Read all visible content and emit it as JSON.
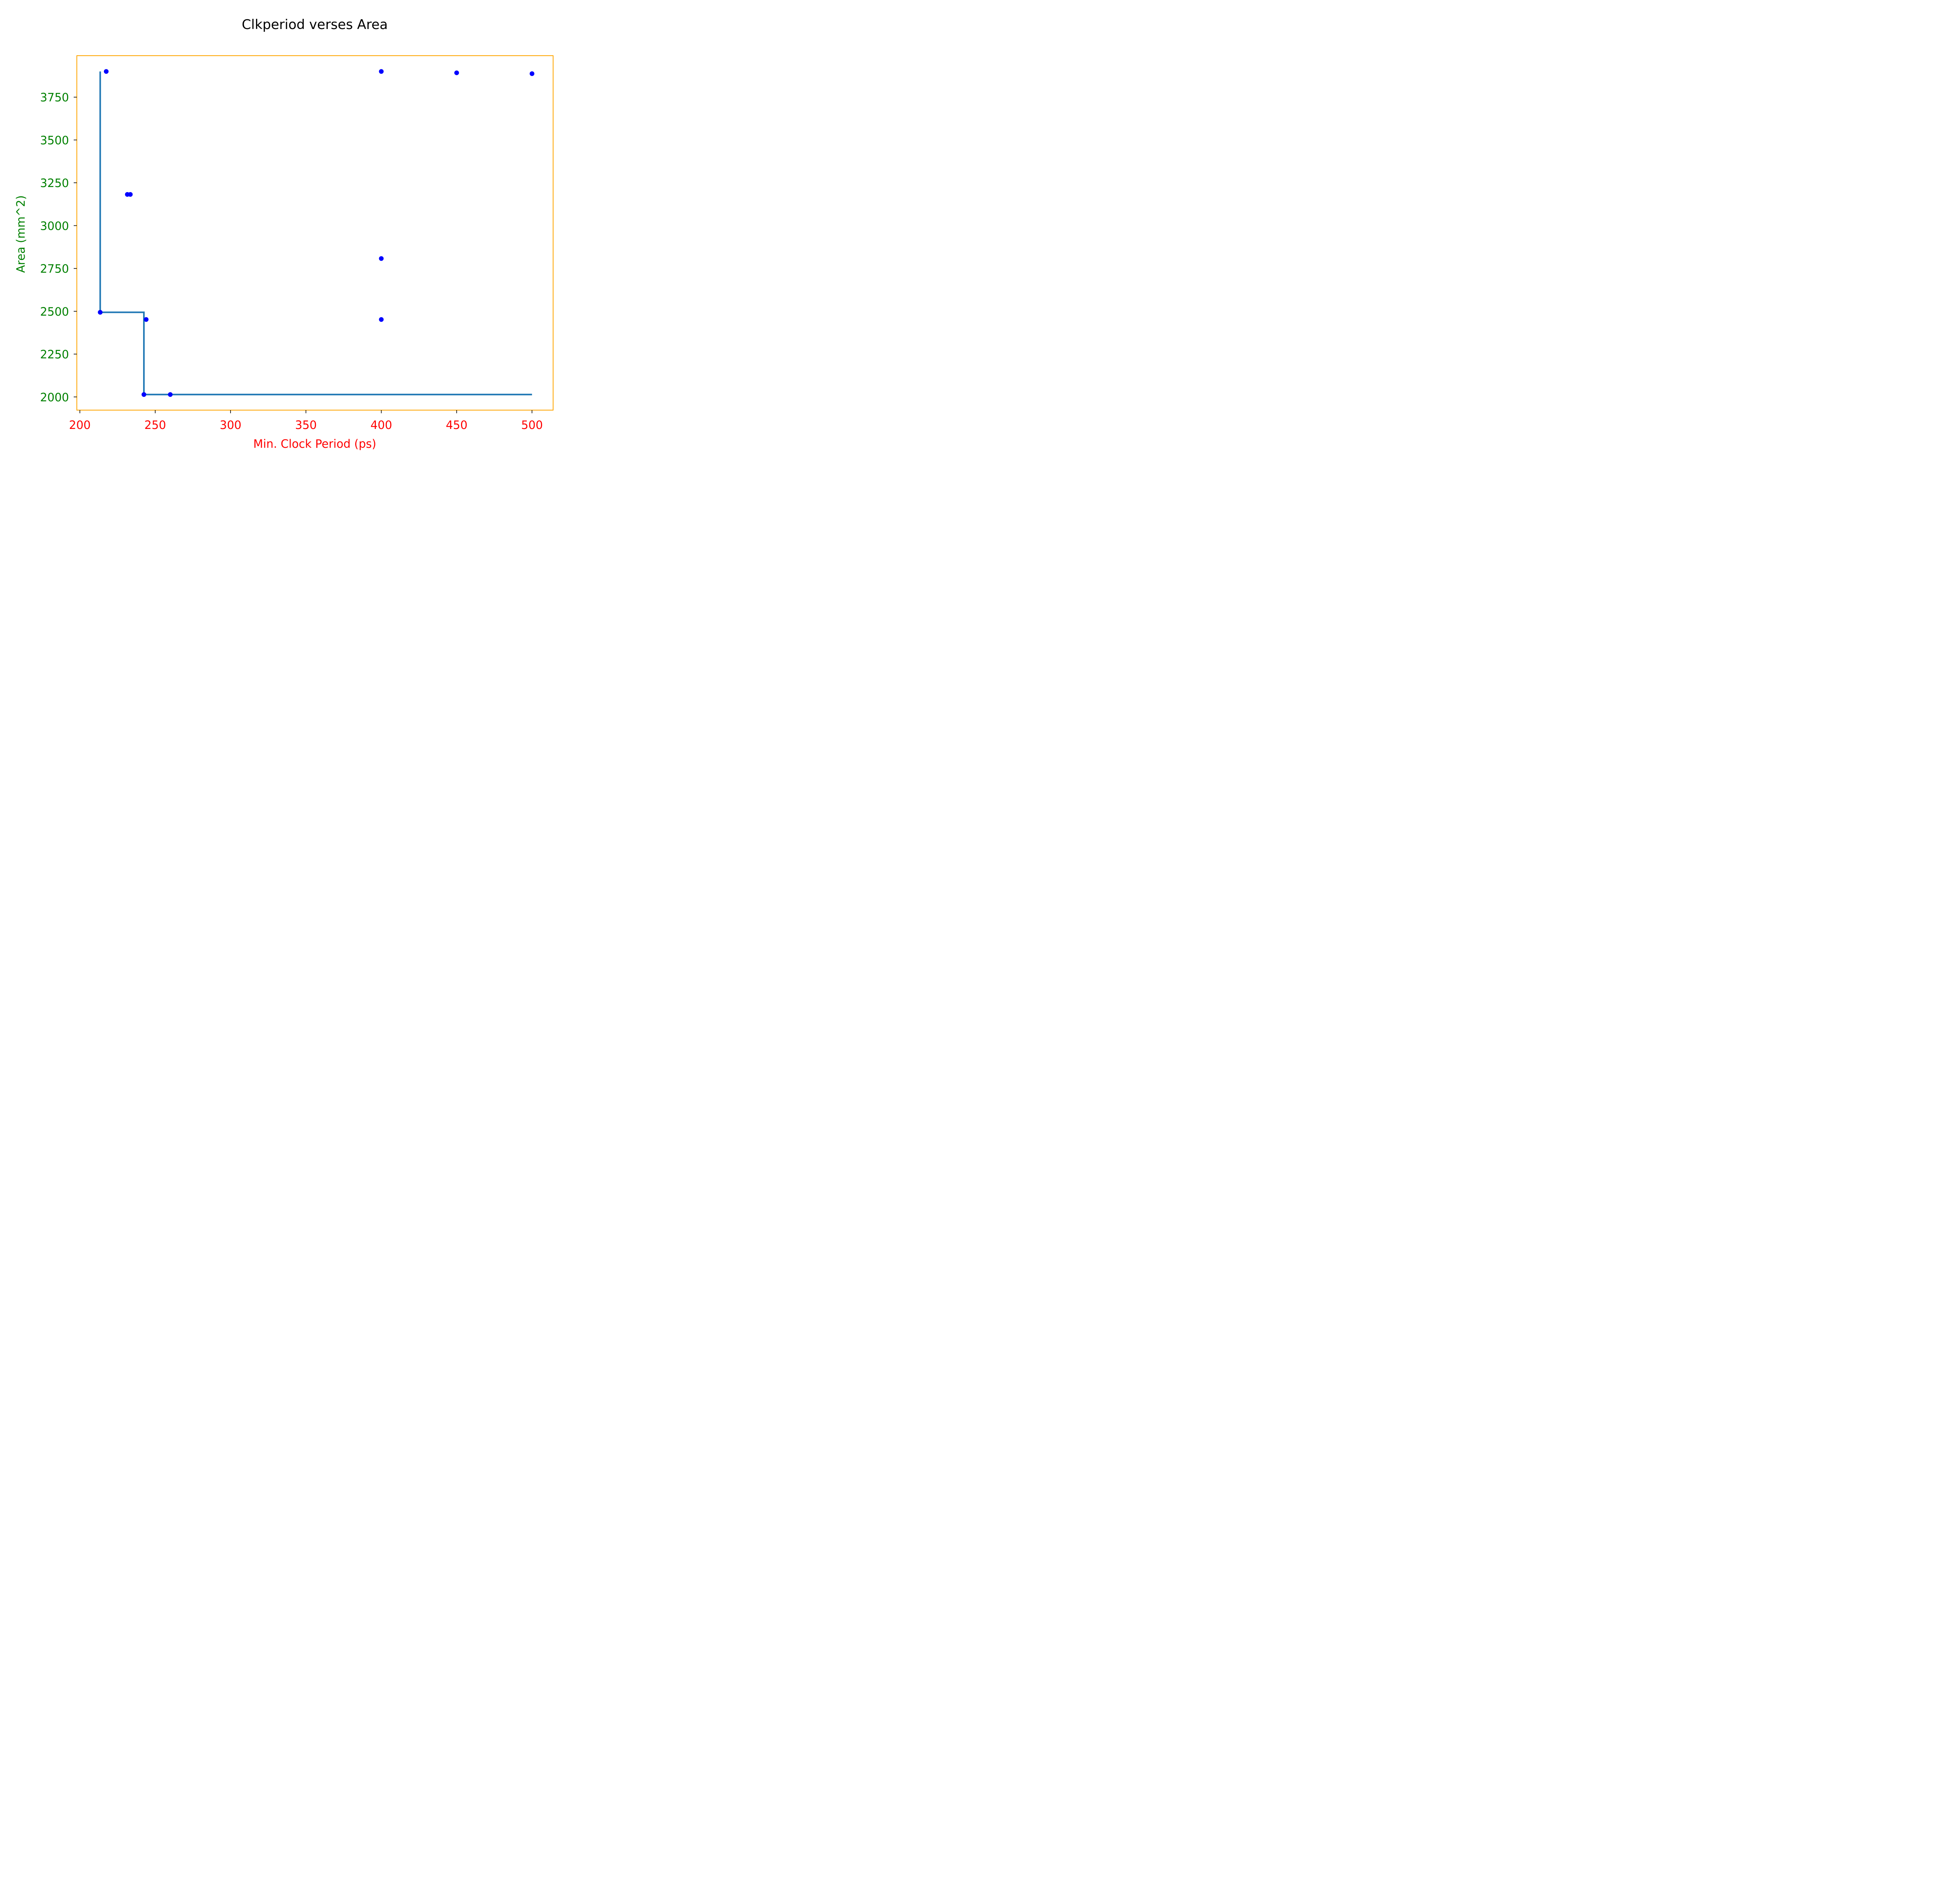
{
  "chart_data": {
    "type": "scatter",
    "title": "Clkperiod verses Area",
    "xlabel": "Min. Clock Period (ps)",
    "ylabel": "Area (mm^2)",
    "xlim": [
      198,
      514
    ],
    "ylim": [
      1923,
      3992
    ],
    "xticks": [
      200,
      250,
      300,
      350,
      400,
      450,
      500
    ],
    "yticks": [
      2000,
      2250,
      2500,
      2750,
      3000,
      3250,
      3500,
      3750
    ],
    "grid": false,
    "colors": {
      "frame": "#ffa500",
      "xtick_labels": "#ff0000",
      "ytick_labels": "#008000",
      "xlabel": "#ff0000",
      "ylabel": "#008000",
      "points": "#0000ff",
      "step_line": "#1f77b4"
    },
    "points": [
      {
        "x": 213.5,
        "y": 2494
      },
      {
        "x": 217.5,
        "y": 3900
      },
      {
        "x": 231.5,
        "y": 3182
      },
      {
        "x": 233.5,
        "y": 3182
      },
      {
        "x": 242.5,
        "y": 2014
      },
      {
        "x": 244.0,
        "y": 2452
      },
      {
        "x": 260.0,
        "y": 2014
      },
      {
        "x": 400.0,
        "y": 3900
      },
      {
        "x": 400.0,
        "y": 2808
      },
      {
        "x": 400.0,
        "y": 2452
      },
      {
        "x": 450.0,
        "y": 3892
      },
      {
        "x": 500.0,
        "y": 3887
      }
    ],
    "step_line": [
      {
        "x": 213.5,
        "y": 3900
      },
      {
        "x": 213.5,
        "y": 2494
      },
      {
        "x": 242.5,
        "y": 2494
      },
      {
        "x": 242.5,
        "y": 2014
      },
      {
        "x": 500.0,
        "y": 2014
      }
    ]
  }
}
